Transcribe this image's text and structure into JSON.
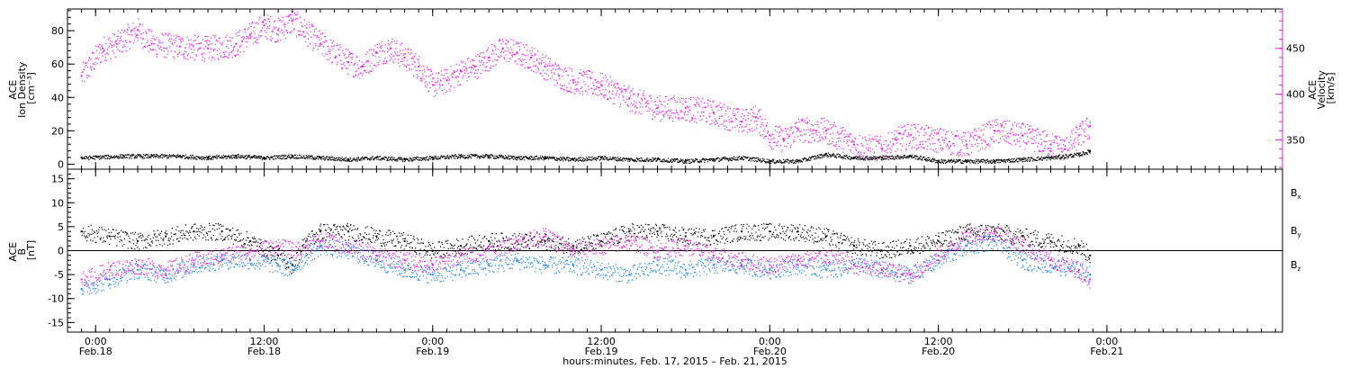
{
  "figure": {
    "xaxis_title": "hours:minutes, Feb. 17, 2015 – Feb. 21, 2015",
    "xrange_hours": [
      -2,
      84.5
    ],
    "xticks": [
      {
        "h": 0,
        "time": "0:00",
        "date": "Feb.18"
      },
      {
        "h": 12,
        "time": "12:00",
        "date": "Feb.18"
      },
      {
        "h": 24,
        "time": "0:00",
        "date": "Feb.19"
      },
      {
        "h": 36,
        "time": "12:00",
        "date": "Feb.19"
      },
      {
        "h": 48,
        "time": "0:00",
        "date": "Feb.20"
      },
      {
        "h": 60,
        "time": "12:00",
        "date": "Feb.20"
      },
      {
        "h": 72,
        "time": "0:00",
        "date": "Feb.21"
      }
    ]
  },
  "panel_top": {
    "left_label": [
      "ACE",
      "Ion Density",
      "[cm⁻³]"
    ],
    "right_label": [
      "ACE",
      "Velocity",
      "[km/s]"
    ]
  },
  "panel_bottom": {
    "left_label": [
      "ACE",
      "B",
      "[nT]"
    ],
    "legend": [
      {
        "base": "B",
        "sub": "x",
        "color": "#000000"
      },
      {
        "base": "B",
        "sub": "y",
        "color": "#1a86e0"
      },
      {
        "base": "B",
        "sub": "z",
        "color": "#e020e0"
      }
    ]
  },
  "colors": {
    "density": "#000000",
    "velocity": "#e020e0",
    "bx": "#000000",
    "by": "#1a86e0",
    "bz": "#e020e0",
    "right_axis": "#e020e0"
  },
  "chart_data": [
    {
      "type": "scatter",
      "panel": "top",
      "x_unit": "hours from 2015-02-18 00:00",
      "series": [
        {
          "axis": "left",
          "ylim": [
            -3,
            93
          ],
          "yticks": [
            0,
            20,
            40,
            60,
            80
          ],
          "x": [
            -1,
            2,
            4,
            6,
            8,
            10,
            12,
            14,
            16,
            18,
            20,
            22,
            24,
            26,
            28,
            30,
            32,
            34,
            36,
            38,
            40,
            42,
            44,
            46,
            48,
            50,
            52,
            54,
            56,
            58,
            60,
            62,
            64,
            66,
            68,
            70,
            70.8
          ],
          "values": [
            4,
            5,
            5,
            5,
            4,
            5,
            4,
            5,
            4,
            3,
            4,
            3,
            4,
            5,
            5,
            4,
            4,
            3,
            4,
            3,
            3,
            2,
            3,
            4,
            2,
            2,
            6,
            4,
            4,
            5,
            2,
            2,
            2,
            3,
            4,
            6,
            8
          ]
        },
        {
          "axis": "right",
          "ylim": [
            318,
            493
          ],
          "yticks": [
            350,
            400,
            450
          ],
          "x": [
            -1,
            0.5,
            1.5,
            3,
            4,
            6,
            8,
            10,
            11,
            12,
            13,
            14,
            16,
            18,
            19,
            20,
            21,
            22,
            23,
            24,
            25,
            26,
            27,
            28,
            29,
            30,
            31,
            32,
            33,
            34,
            36,
            38,
            40,
            42,
            44,
            46,
            47,
            48,
            49,
            50,
            52,
            54,
            56,
            57,
            58,
            60,
            62,
            64,
            66,
            68,
            69,
            70,
            70.8
          ],
          "values": [
            420,
            450,
            455,
            470,
            455,
            452,
            450,
            455,
            465,
            475,
            470,
            480,
            455,
            435,
            430,
            445,
            450,
            440,
            430,
            410,
            415,
            425,
            430,
            440,
            450,
            445,
            440,
            430,
            420,
            415,
            410,
            395,
            385,
            385,
            380,
            370,
            375,
            355,
            350,
            362,
            360,
            345,
            340,
            350,
            355,
            350,
            345,
            360,
            355,
            345,
            340,
            355,
            365
          ]
        }
      ]
    },
    {
      "type": "scatter",
      "panel": "bottom",
      "x_unit": "hours from 2015-02-18 00:00",
      "ylim": [
        -17,
        17
      ],
      "yticks": [
        -15,
        -10,
        -5,
        0,
        5,
        10,
        15
      ],
      "series": [
        {
          "x": [
            -1,
            1,
            3,
            5,
            7,
            9,
            11,
            13,
            14,
            15,
            16,
            18,
            20,
            22,
            24,
            26,
            28,
            30,
            32,
            34,
            36,
            38,
            40,
            42,
            44,
            46,
            48,
            50,
            52,
            54,
            56,
            58,
            60,
            62,
            64,
            66,
            68,
            70,
            70.8
          ],
          "values": [
            4,
            3,
            2,
            3,
            4,
            4,
            2,
            -1,
            -3,
            2,
            4,
            4,
            3,
            2,
            0,
            1,
            2,
            2,
            2,
            1,
            2,
            4,
            4,
            3,
            3,
            4,
            4,
            4,
            3,
            1,
            0,
            1,
            2,
            4,
            4,
            3,
            2,
            1,
            -1
          ]
        },
        {
          "x": [
            -1,
            1,
            3,
            5,
            7,
            9,
            11,
            13,
            14,
            15,
            16,
            18,
            20,
            22,
            24,
            26,
            28,
            30,
            32,
            34,
            36,
            38,
            40,
            42,
            44,
            46,
            48,
            50,
            52,
            54,
            56,
            58,
            60,
            62,
            64,
            66,
            68,
            70,
            70.8
          ],
          "values": [
            -8,
            -6,
            -4,
            -5,
            -3,
            -2,
            -2,
            -3,
            -4,
            -1,
            1,
            0,
            -2,
            -4,
            -5,
            -4,
            -3,
            -2,
            -3,
            -3,
            -4,
            -5,
            -3,
            -4,
            -3,
            -3,
            -4,
            -3,
            -4,
            -3,
            -4,
            -5,
            -2,
            1,
            2,
            -2,
            -3,
            -4,
            -5
          ]
        },
        {
          "x": [
            -1,
            1,
            3,
            5,
            7,
            9,
            11,
            13,
            14,
            15,
            16,
            18,
            20,
            22,
            24,
            26,
            28,
            30,
            32,
            34,
            36,
            38,
            40,
            42,
            44,
            46,
            48,
            50,
            52,
            54,
            56,
            58,
            60,
            62,
            64,
            66,
            68,
            70,
            70.8
          ],
          "values": [
            -6,
            -4,
            -3,
            -4,
            -2,
            -1,
            0,
            1,
            0,
            1,
            2,
            1,
            -1,
            -2,
            -3,
            -1,
            0,
            2,
            3,
            0,
            1,
            2,
            0,
            1,
            -1,
            -2,
            -3,
            -2,
            -1,
            -3,
            -4,
            -5,
            -1,
            3,
            4,
            1,
            -2,
            -4,
            -6
          ]
        }
      ]
    }
  ]
}
